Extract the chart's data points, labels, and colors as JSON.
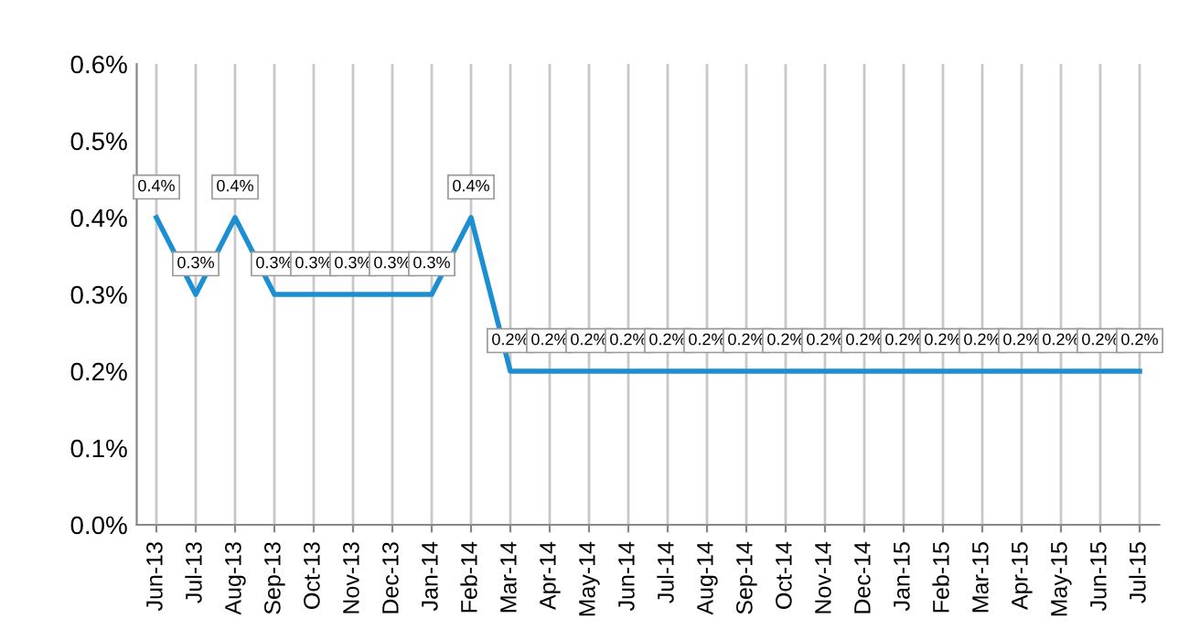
{
  "chart_data": {
    "type": "line",
    "categories": [
      "Jun-13",
      "Jul-13",
      "Aug-13",
      "Sep-13",
      "Oct-13",
      "Nov-13",
      "Dec-13",
      "Jan-14",
      "Feb-14",
      "Mar-14",
      "Apr-14",
      "May-14",
      "Jun-14",
      "Jul-14",
      "Aug-14",
      "Sep-14",
      "Oct-14",
      "Nov-14",
      "Dec-14",
      "Jan-15",
      "Feb-15",
      "Mar-15",
      "Apr-15",
      "May-15",
      "Jun-15",
      "Jul-15"
    ],
    "series": [
      {
        "color": "#1b8fd2",
        "values": [
          0.4,
          0.3,
          0.4,
          0.3,
          0.3,
          0.3,
          0.3,
          0.3,
          0.4,
          0.2,
          0.2,
          0.2,
          0.2,
          0.2,
          0.2,
          0.2,
          0.2,
          0.2,
          0.2,
          0.2,
          0.2,
          0.2,
          0.2,
          0.2,
          0.2,
          0.2
        ],
        "value_labels": [
          "0.4%",
          "0.3%",
          "0.4%",
          "0.3%",
          "0.3%",
          "0.3%",
          "0.3%",
          "0.3%",
          "0.4%",
          "0.2%",
          "0.2%",
          "0.2%",
          "0.2%",
          "0.2%",
          "0.2%",
          "0.2%",
          "0.2%",
          "0.2%",
          "0.2%",
          "0.2%",
          "0.2%",
          "0.2%",
          "0.2%",
          "0.2%",
          "0.2%",
          "0.2%"
        ]
      }
    ],
    "ylim": [
      0,
      0.6
    ],
    "yticks": [
      {
        "value": 0,
        "label": "0.0%"
      },
      {
        "value": 0.1,
        "label": "0.1%"
      },
      {
        "value": 0.2,
        "label": "0.2%"
      },
      {
        "value": 0.3,
        "label": "0.3%"
      },
      {
        "value": 0.4,
        "label": "0.4%"
      },
      {
        "value": 0.5,
        "label": "0.5%"
      },
      {
        "value": 0.6,
        "label": "0.6%"
      }
    ],
    "grid": "x",
    "marker": "none",
    "line_style": "solid",
    "legend": false
  }
}
